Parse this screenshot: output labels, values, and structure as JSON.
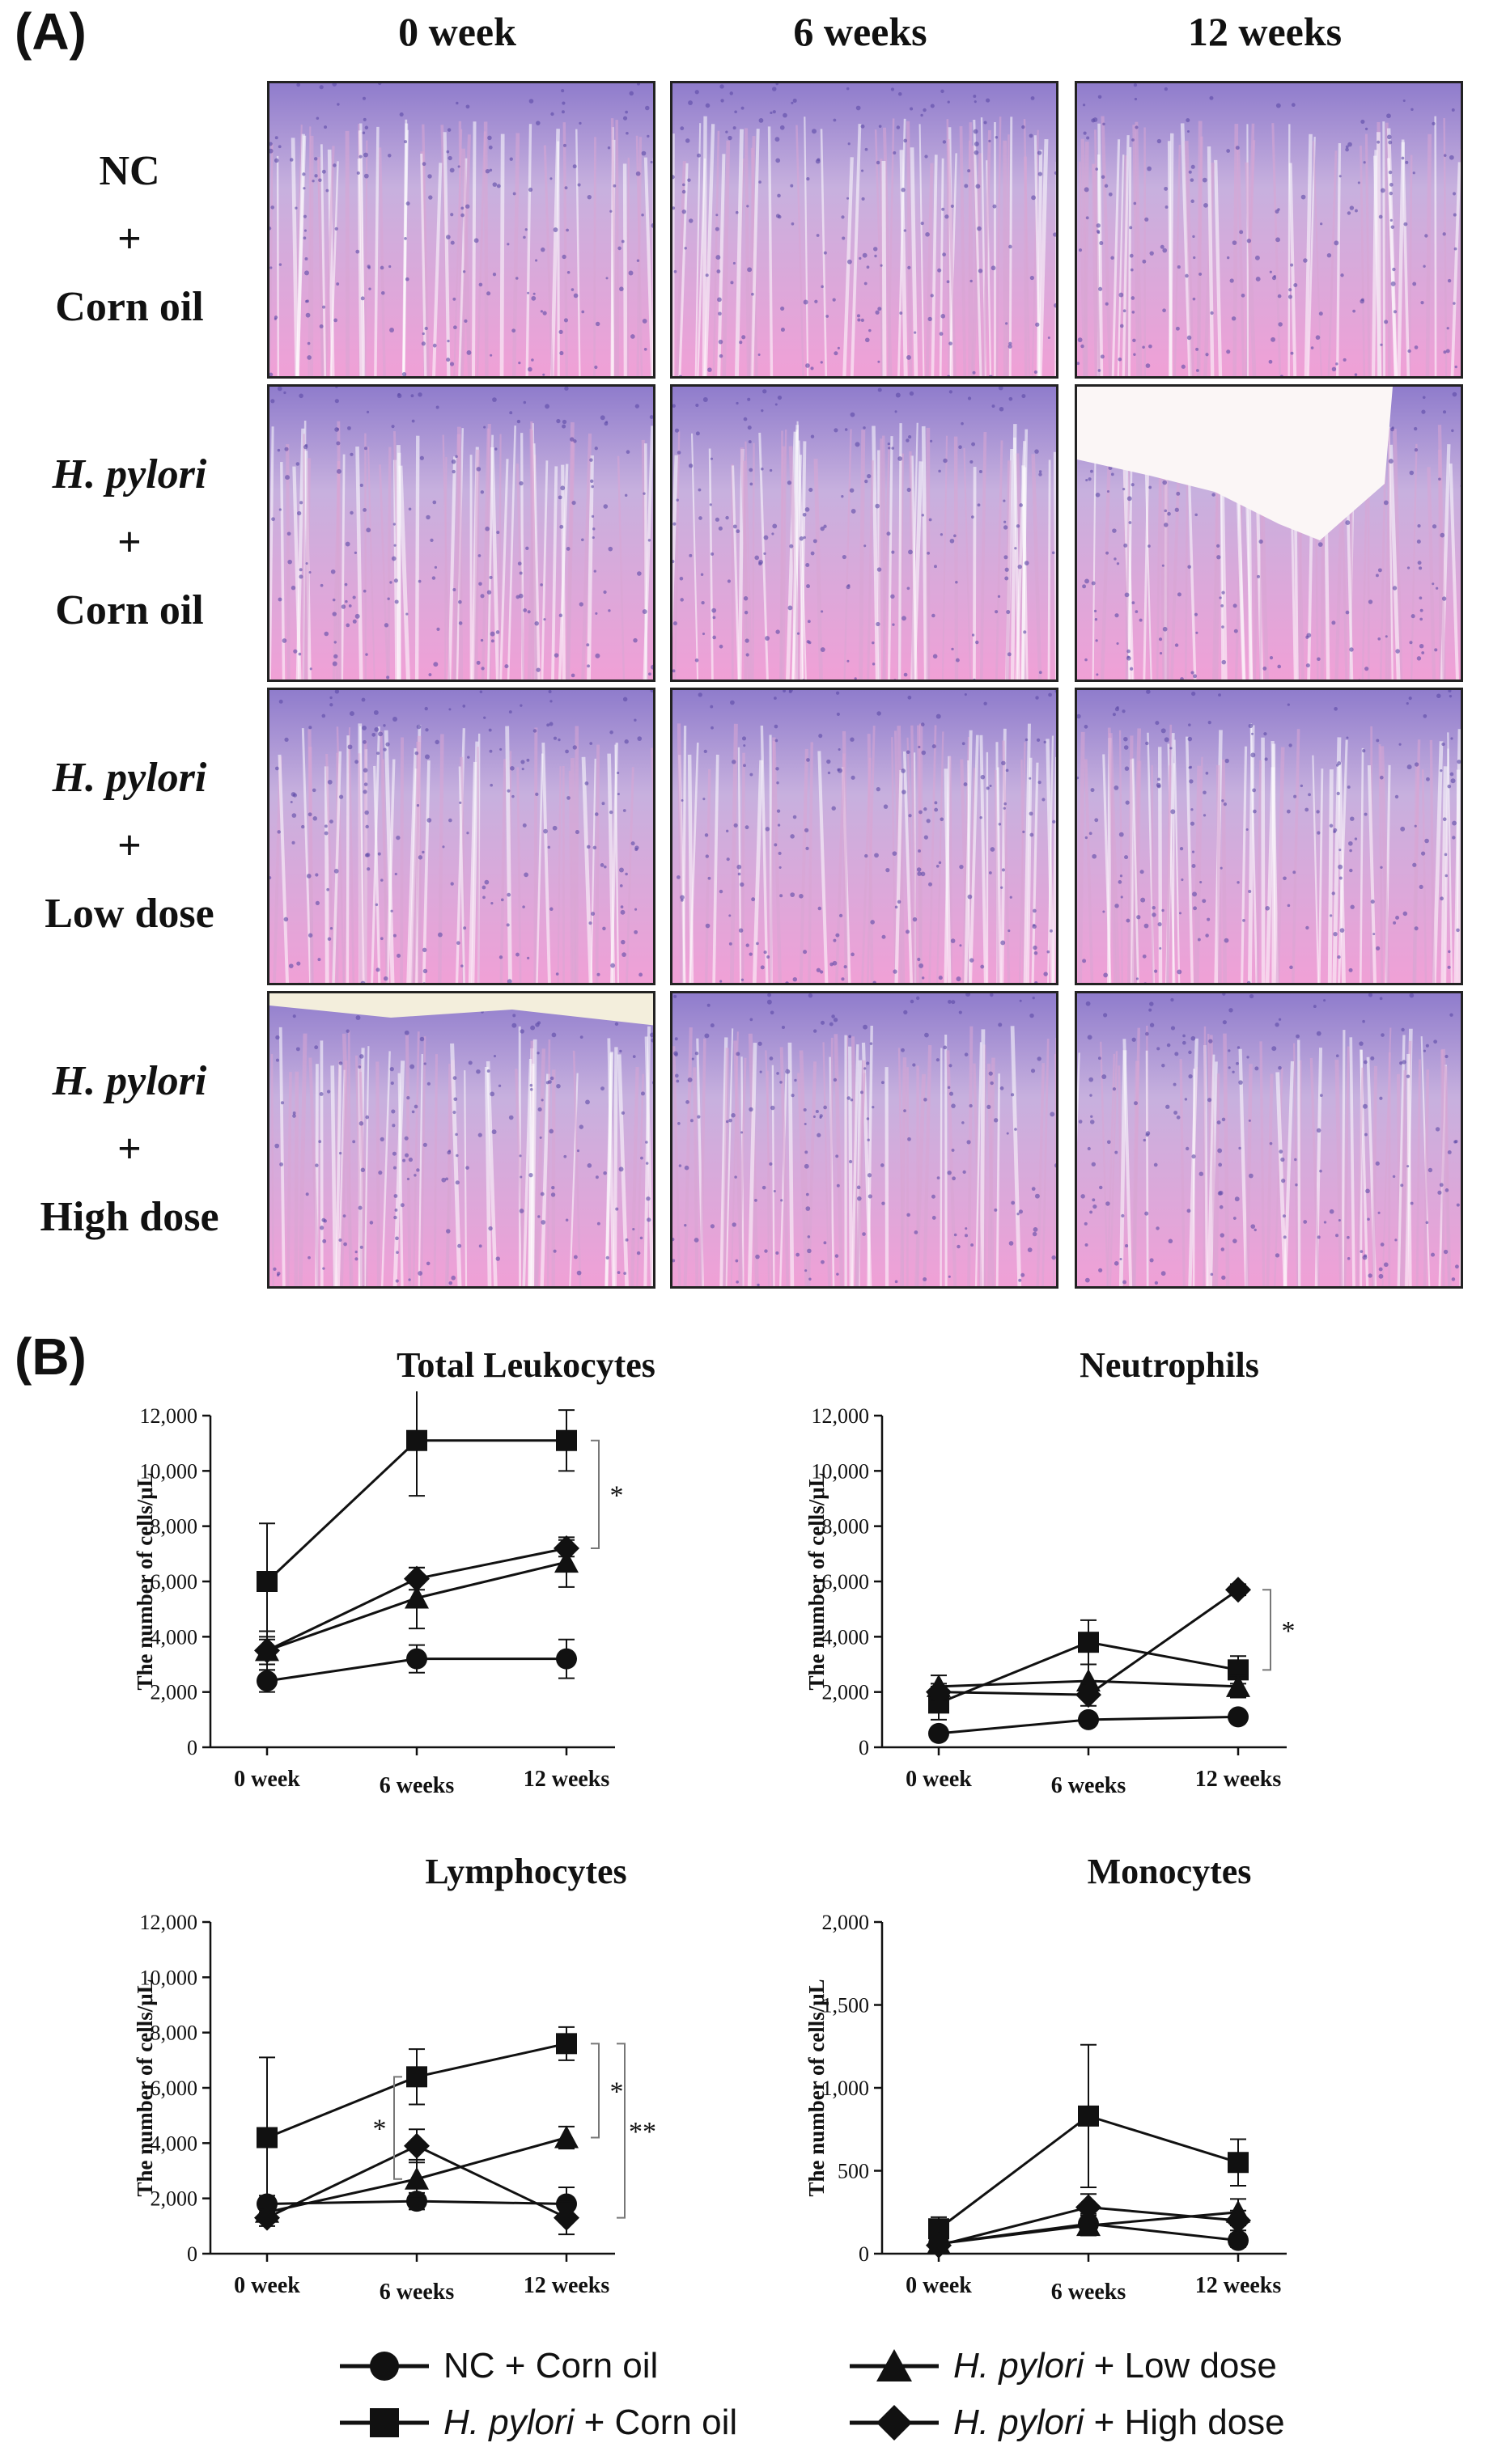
{
  "panelA": {
    "label": "(A)",
    "columns": [
      "0 week",
      "6 weeks",
      "12 weeks"
    ],
    "rows": [
      {
        "top": "NC",
        "plus": "+",
        "bottom": "Corn oil",
        "italic": false
      },
      {
        "top": "H. pylori",
        "plus": "+",
        "bottom": "Corn oil",
        "italic": true
      },
      {
        "top": "H. pylori",
        "plus": "+",
        "bottom": "Low dose",
        "italic": true
      },
      {
        "top": "H. pylori",
        "plus": "+",
        "bottom": "High dose",
        "italic": true
      }
    ]
  },
  "panelB": {
    "label": "(B)"
  },
  "chart_data": [
    {
      "type": "line",
      "title": "Total Leukocytes",
      "ylabel": "The number of cells/μL",
      "categories": [
        "0 week",
        "6 weeks",
        "12 weeks"
      ],
      "ylim": [
        0,
        12000
      ],
      "yticks": [
        "0",
        "2,000",
        "4,000",
        "6,000",
        "8,000",
        "10,000",
        "12,000"
      ],
      "series": [
        {
          "name": "NC + Corn oil",
          "marker": "circle",
          "values": [
            2400,
            3200,
            3200
          ],
          "err": [
            400,
            500,
            700
          ]
        },
        {
          "name": "H. pylori + Corn oil",
          "marker": "square",
          "values": [
            6000,
            11100,
            11100
          ],
          "err": [
            2100,
            2000,
            1100
          ]
        },
        {
          "name": "H. pylori + Low dose",
          "marker": "triangle",
          "values": [
            3500,
            5400,
            6700
          ],
          "err": [
            700,
            1100,
            900
          ]
        },
        {
          "name": "H. pylori + High dose",
          "marker": "diamond",
          "values": [
            3500,
            6100,
            7200
          ],
          "err": [
            500,
            400,
            300
          ]
        }
      ],
      "significance": [
        {
          "label": "*",
          "y_from": 11100,
          "y_to": 7200
        }
      ]
    },
    {
      "type": "line",
      "title": "Neutrophils",
      "ylabel": "The number of cells/μL",
      "categories": [
        "0 week",
        "6 weeks",
        "12 weeks"
      ],
      "ylim": [
        0,
        12000
      ],
      "yticks": [
        "0",
        "2,000",
        "4,000",
        "6,000",
        "8,000",
        "10,000",
        "12,000"
      ],
      "series": [
        {
          "name": "NC + Corn oil",
          "marker": "circle",
          "values": [
            500,
            1000,
            1100
          ],
          "err": [
            100,
            200,
            200
          ]
        },
        {
          "name": "H. pylori + Corn oil",
          "marker": "square",
          "values": [
            1600,
            3800,
            2800
          ],
          "err": [
            600,
            800,
            500
          ]
        },
        {
          "name": "H. pylori + Low dose",
          "marker": "triangle",
          "values": [
            2200,
            2400,
            2200
          ],
          "err": [
            400,
            600,
            400
          ]
        },
        {
          "name": "H. pylori + High dose",
          "marker": "diamond",
          "values": [
            2000,
            1900,
            5700
          ],
          "err": [
            300,
            400,
            200
          ]
        }
      ],
      "significance": [
        {
          "label": "*",
          "y_from": 5700,
          "y_to": 2800
        }
      ]
    },
    {
      "type": "line",
      "title": "Lymphocytes",
      "ylabel": "The number of cells/μL",
      "categories": [
        "0 week",
        "6 weeks",
        "12 weeks"
      ],
      "ylim": [
        0,
        12000
      ],
      "yticks": [
        "0",
        "2,000",
        "4,000",
        "6,000",
        "8,000",
        "10,000",
        "12,000"
      ],
      "series": [
        {
          "name": "NC + Corn oil",
          "marker": "circle",
          "values": [
            1800,
            1900,
            1800
          ],
          "err": [
            300,
            300,
            600
          ]
        },
        {
          "name": "H. pylori + Corn oil",
          "marker": "square",
          "values": [
            4200,
            6400,
            7600
          ],
          "err": [
            2900,
            1000,
            600
          ]
        },
        {
          "name": "H. pylori + Low dose",
          "marker": "triangle",
          "values": [
            1500,
            2700,
            4200
          ],
          "err": [
            300,
            700,
            400
          ]
        },
        {
          "name": "H. pylori + High dose",
          "marker": "diamond",
          "values": [
            1300,
            3900,
            1300
          ],
          "err": [
            300,
            600,
            600
          ]
        }
      ],
      "significance": [
        {
          "label": "*",
          "y_from": 6400,
          "y_to": 2700,
          "at": "6 weeks"
        },
        {
          "label": "*",
          "y_from": 7600,
          "y_to": 4200,
          "at": "12 weeks"
        },
        {
          "label": "**",
          "y_from": 7600,
          "y_to": 1300,
          "at": "12 weeks outer"
        }
      ]
    },
    {
      "type": "line",
      "title": "Monocytes",
      "ylabel": "The number of cells/μL",
      "categories": [
        "0 week",
        "6 weeks",
        "12 weeks"
      ],
      "ylim": [
        0,
        2000
      ],
      "yticks": [
        "0",
        "500",
        "1,000",
        "1,500",
        "2,000"
      ],
      "series": [
        {
          "name": "NC + Corn oil",
          "marker": "circle",
          "values": [
            60,
            180,
            80
          ],
          "err": [
            30,
            60,
            40
          ]
        },
        {
          "name": "H. pylori + Corn oil",
          "marker": "square",
          "values": [
            150,
            830,
            550
          ],
          "err": [
            70,
            430,
            140
          ]
        },
        {
          "name": "H. pylori + Low dose",
          "marker": "triangle",
          "values": [
            60,
            170,
            250
          ],
          "err": [
            30,
            60,
            80
          ]
        },
        {
          "name": "H. pylori + High dose",
          "marker": "diamond",
          "values": [
            50,
            280,
            200
          ],
          "err": [
            30,
            80,
            60
          ]
        }
      ],
      "significance": []
    }
  ],
  "legend": [
    {
      "marker": "circle",
      "prefix": "",
      "italic": "",
      "suffix": "NC + Corn oil"
    },
    {
      "marker": "triangle",
      "prefix": "",
      "italic": "H. pylori",
      "suffix": " + Low dose"
    },
    {
      "marker": "square",
      "prefix": "",
      "italic": "H. pylori",
      "suffix": " + Corn oil"
    },
    {
      "marker": "diamond",
      "prefix": "",
      "italic": "H. pylori",
      "suffix": " + High dose"
    }
  ],
  "colors": {
    "ink": "#111111",
    "stain_base": "#e7b3dc",
    "stain_dark": "#8f7ccc",
    "stain_pink": "#f1a0d6"
  }
}
